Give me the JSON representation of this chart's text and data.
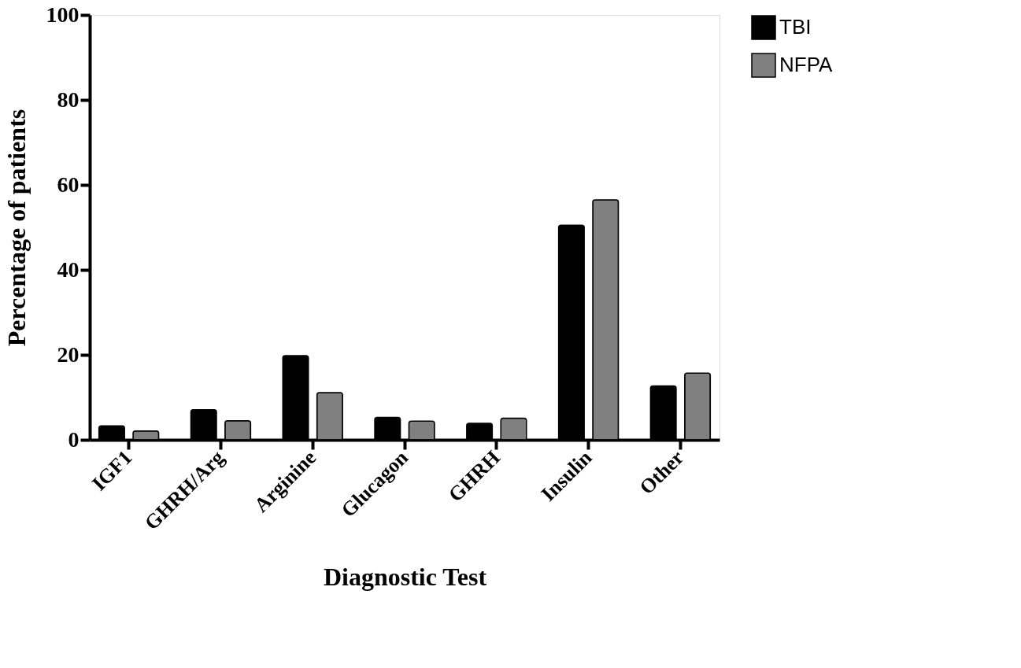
{
  "chart_data": {
    "type": "bar",
    "categories": [
      "IGF1",
      "GHRH/Arg",
      "Arginine",
      "Glucagon",
      "GHRH",
      "Insulin",
      "Other"
    ],
    "series": [
      {
        "name": "TBI",
        "color": "#000000",
        "values": [
          3.3,
          7.1,
          19.8,
          5.3,
          3.9,
          50.5,
          12.7
        ]
      },
      {
        "name": "NFPA",
        "color": "#808080",
        "values": [
          2.1,
          4.5,
          11.1,
          4.4,
          5.1,
          56.5,
          15.7
        ]
      }
    ],
    "xlabel": "Diagnostic Test",
    "ylabel": "Percentage of patients",
    "ylim": [
      0,
      100
    ],
    "yticks": [
      0,
      20,
      40,
      60,
      80,
      100
    ],
    "grid": false,
    "legend": "top right"
  }
}
